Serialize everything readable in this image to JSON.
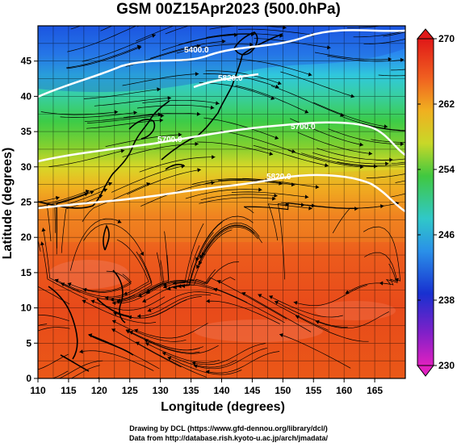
{
  "title": "GSM 00Z15Apr2023 (500.0hPa)",
  "xlabel": "Longitude (degrees)",
  "ylabel": "Latitude (degrees)",
  "x_ticks": [
    "110",
    "115",
    "120",
    "125",
    "130",
    "135",
    "140",
    "145",
    "150",
    "155",
    "160",
    "165"
  ],
  "y_ticks": [
    "0",
    "5",
    "10",
    "15",
    "20",
    "25",
    "30",
    "35",
    "40",
    "45"
  ],
  "colorbar_ticks": [
    "230",
    "238",
    "246",
    "254",
    "262",
    "270"
  ],
  "contour_labels": [
    "5400.0",
    "5700.0",
    "5700.0",
    "5820.0",
    "5820.0"
  ],
  "credits": {
    "line1": "Drawing by DCL (https://www.gfd-dennou.org/library/dcl/)",
    "line2": "Data from http://database.rish.kyoto-u.ac.jp/arch/jmadata/"
  },
  "colors": {
    "cold": "#1e5fe0",
    "cyan": "#30c8e0",
    "green": "#3ccc3c",
    "yellow": "#e8d820",
    "orange": "#f08a20",
    "red": "#e83818",
    "contour": "#ffffff",
    "streamline": "#000000"
  },
  "chart_data": {
    "type": "heatmap",
    "variable": "temperature (K) at 500.0hPa with geopotential height contours and wind streamlines",
    "x_range": [
      110,
      170
    ],
    "y_range": [
      0,
      50
    ],
    "colorbar_range": [
      230,
      270
    ]
  }
}
